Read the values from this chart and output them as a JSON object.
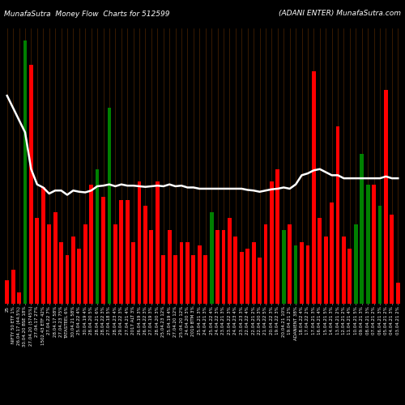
{
  "title_left": "MunafaSutra  Money Flow  Charts for 512599",
  "title_right": "(ADANI ENTER) MunafaSutra.com",
  "background_color": "#000000",
  "bar_colors": [
    "red",
    "red",
    "red",
    "green",
    "red",
    "red",
    "red",
    "red",
    "red",
    "red",
    "red",
    "red",
    "red",
    "red",
    "red",
    "green",
    "red",
    "green",
    "red",
    "red",
    "red",
    "red",
    "red",
    "red",
    "red",
    "red",
    "red",
    "red",
    "red",
    "red",
    "red",
    "red",
    "red",
    "red",
    "green",
    "red",
    "red",
    "red",
    "red",
    "red",
    "red",
    "red",
    "red",
    "red",
    "red",
    "red",
    "green",
    "red",
    "green",
    "red",
    "red",
    "red",
    "red",
    "red",
    "red",
    "red",
    "red",
    "red",
    "green",
    "green",
    "green",
    "red",
    "green",
    "red",
    "red",
    "red"
  ],
  "bar_heights": [
    38,
    55,
    18,
    430,
    390,
    140,
    190,
    130,
    150,
    100,
    80,
    110,
    90,
    130,
    195,
    220,
    175,
    320,
    130,
    170,
    170,
    100,
    200,
    160,
    120,
    200,
    80,
    120,
    80,
    100,
    100,
    80,
    95,
    80,
    150,
    120,
    120,
    140,
    110,
    85,
    90,
    100,
    75,
    130,
    200,
    220,
    120,
    130,
    95,
    100,
    95,
    380,
    140,
    110,
    165,
    290,
    110,
    90,
    130,
    245,
    195,
    195,
    160,
    350,
    145,
    35
  ],
  "line_values": [
    340,
    320,
    300,
    280,
    220,
    195,
    190,
    180,
    185,
    185,
    178,
    185,
    183,
    182,
    185,
    192,
    193,
    195,
    192,
    195,
    193,
    193,
    192,
    191,
    192,
    193,
    192,
    195,
    192,
    193,
    190,
    190,
    188,
    188,
    188,
    188,
    188,
    188,
    188,
    188,
    186,
    185,
    183,
    185,
    187,
    188,
    190,
    188,
    195,
    210,
    213,
    218,
    220,
    215,
    210,
    210,
    205,
    205,
    205,
    205,
    205,
    205,
    205,
    208,
    205,
    205
  ],
  "line_color": "#ffffff",
  "line_width": 1.8,
  "ylim": [
    0,
    450
  ],
  "xlabel_fontsize": 4.0,
  "title_fontsize": 6.5,
  "labels": [
    "25",
    "NIFTY 50 ETF 1%",
    "26.04.17 (44.5%)",
    "30.04.20 BSE 18%",
    "27.04.20 (5745%)",
    "27.04.17 27%",
    "1502.43 ETF 42%",
    "27.04.22 7%",
    "28.04.17 58%",
    "27.04.23 75%",
    "TATASTEEL 6%",
    "30.04.21 58%",
    "25.04.22 4%",
    "30.04.19 4%",
    "28.04.20 5%",
    "28.04.21 6%",
    "28.04.22 3%",
    "27.04.18 5%",
    "28.04.23 4%",
    "29.04.22 3%",
    "27.04.21 4%",
    "2017 ALT 3%",
    "26.04.19 3%",
    "26.04.22 3%",
    "27.04.19 3%",
    "28.04.20 3%",
    "25.04.23 12%",
    "25.04.19 4%",
    "27.04.20 12%",
    "25.04.20 12%",
    "24.04.20 3%",
    "2019 BTM 3%",
    "25.04.21 3%",
    "24.04.21 3%",
    "25.04.22 4%",
    "24.04.22 3%",
    "23.04.21 3%",
    "23.04.22 3%",
    "24.04.23 4%",
    "23.04.23 3%",
    "22.04.22 4%",
    "22.04.21 2%",
    "22.04.20 3%",
    "21.04.22 5%",
    "20.04.22 3%",
    "19.04.22 3%",
    "20.04.21 10%",
    "19.04.21 2%",
    "ADANIENT 38%",
    "18.04.22 4%",
    "17.04.22 2%",
    "17.04.21 3%",
    "16.04.21 4%",
    "15.04.21 5%",
    "14.04.21 3%",
    "13.04.21 2%",
    "12.04.21 2%",
    "11.04.21 4%",
    "10.04.21 5%",
    "09.04.21 3%",
    "08.04.21 3%",
    "07.04.21 2%",
    "06.04.21 3%",
    "05.04.21 2%",
    "04.04.21 3%",
    "03.04.21 2%"
  ]
}
